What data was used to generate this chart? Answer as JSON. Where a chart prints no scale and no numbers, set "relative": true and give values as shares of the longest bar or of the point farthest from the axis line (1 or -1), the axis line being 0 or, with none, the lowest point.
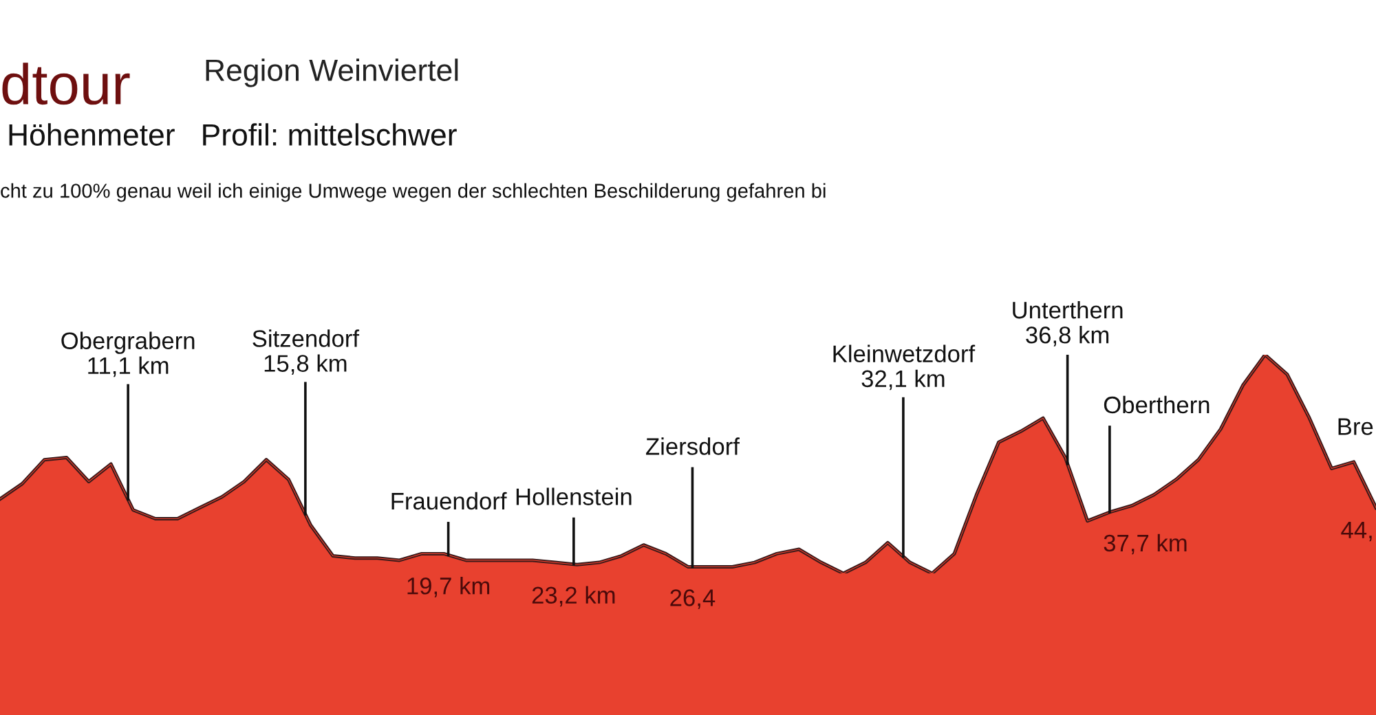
{
  "chart_data": {
    "type": "area",
    "relative": true,
    "tick_labels": false,
    "title": "dtour",
    "subtitle": "Region Weinviertel",
    "annotations": [
      "Höhenmeter   Profil: mittelschwer",
      "cht zu 100% genau weil ich einige Umwege wegen der schlechten Beschilderung gefahren bi",
      "Obergrabern\n11,1 km",
      "Sitzendorf\n15,8 km",
      "Frauendorf\n19,7 km",
      "Hollenstein\n23,2 km",
      "Ziersdorf\n26,4",
      "Kleinwetzdorf\n32,1 km",
      "Unterthern\n36,8 km",
      "Oberthern\n37,7 km",
      "Bre\n44,"
    ],
    "categories": [
      null,
      null,
      null,
      null,
      null,
      null,
      null,
      null,
      null,
      null,
      null,
      null,
      null,
      null,
      null,
      null,
      null,
      null,
      null,
      null,
      null,
      null,
      null,
      null,
      null,
      null,
      null,
      null,
      null,
      null,
      null,
      null,
      null,
      null,
      null,
      null,
      null,
      null,
      null,
      null,
      null,
      null,
      null,
      null,
      null,
      null,
      null,
      null,
      null,
      null,
      null,
      null,
      null,
      null,
      null,
      null,
      null,
      null,
      null,
      null,
      null,
      null,
      null
    ],
    "series": [
      {
        "color": "#e8412f",
        "values": [
          0.34,
          0.41,
          0.52,
          0.53,
          0.42,
          0.5,
          0.29,
          0.25,
          0.25,
          0.3,
          0.35,
          0.42,
          0.52,
          0.43,
          0.22,
          0.08,
          0.07,
          0.07,
          0.06,
          0.09,
          0.09,
          0.06,
          0.06,
          0.06,
          0.06,
          0.05,
          0.04,
          0.05,
          0.08,
          0.13,
          0.09,
          0.03,
          0.03,
          0.03,
          0.05,
          0.09,
          0.11,
          0.05,
          0.0,
          0.05,
          0.14,
          0.05,
          0.0,
          0.09,
          0.36,
          0.6,
          0.65,
          0.71,
          0.53,
          0.24,
          0.28,
          0.31,
          0.36,
          0.43,
          0.52,
          0.66,
          0.86,
          1.0,
          0.91,
          0.71,
          0.48,
          0.51,
          0.3
        ]
      }
    ]
  }
}
